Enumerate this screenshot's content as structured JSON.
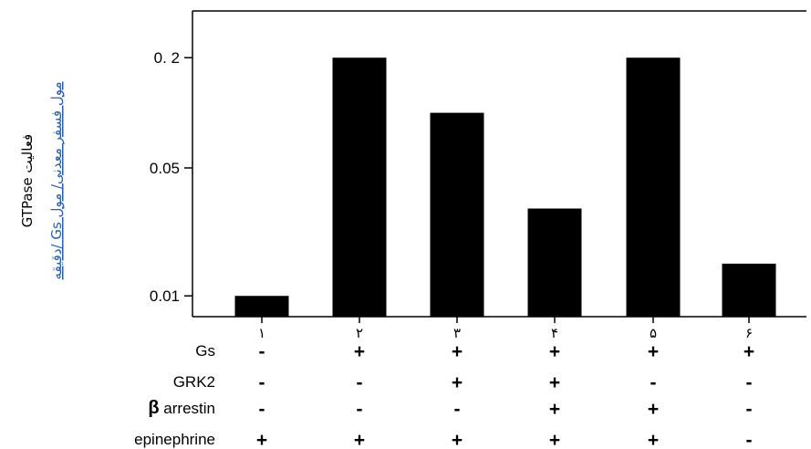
{
  "chart_data": {
    "type": "bar",
    "categories": [
      "۱",
      "۲",
      "۳",
      "۴",
      "۵",
      "۶"
    ],
    "values": [
      0.01,
      0.2,
      0.1,
      0.03,
      0.2,
      0.015
    ],
    "yscale": "log",
    "yticks": [
      {
        "value": 0.01,
        "label": "0.01"
      },
      {
        "value": 0.05,
        "label": "0.05"
      },
      {
        "value": 0.2,
        "label": "0. 2"
      }
    ],
    "ylim": [
      0.0077,
      0.36
    ],
    "ylabel_line1": "فعالیت GTPase",
    "ylabel_line2": "مول فسفر معدنی/ مول Gs /دقیقه",
    "conditions": [
      {
        "label": "Gs",
        "bold_prefix": "",
        "signs": [
          "-",
          "+",
          "+",
          "+",
          "+",
          "+"
        ]
      },
      {
        "label": "GRK2",
        "bold_prefix": "",
        "signs": [
          "-",
          "-",
          "+",
          "+",
          "-",
          "-"
        ]
      },
      {
        "label": "arrestin",
        "bold_prefix": "β",
        "signs": [
          "-",
          "-",
          "-",
          "+",
          "+",
          "-"
        ]
      },
      {
        "label": "epinephrine",
        "bold_prefix": "",
        "signs": [
          "+",
          "+",
          "+",
          "+",
          "+",
          "-"
        ]
      }
    ],
    "bar_color": "#000000"
  }
}
